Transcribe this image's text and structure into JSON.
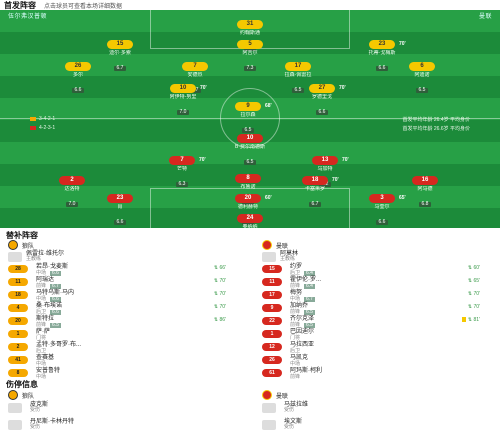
{
  "header": {
    "title": "首发阵容",
    "hint": "点击球员可查看本场详细数据"
  },
  "pitch": {
    "home_team_label": "伍尔弗汉普顿",
    "away_team_label": "曼联",
    "home_rating_hint": "评分",
    "away_rating_hint": "评分",
    "home_formation": "3-4-2-1",
    "away_formation": "4-2-3-1",
    "home_avg": "首发平均年龄 26.4岁  平均身价",
    "away_avg": "首发平均年龄 26.6岁  平均身价"
  },
  "home_players": [
    {
      "num": "31",
      "name": "约翰斯通",
      "rating": "6.2",
      "color": "yellow",
      "evt": ""
    },
    {
      "num": "15",
      "name": "迪尔·多索",
      "rating": "6.7",
      "color": "yellow",
      "evt": ""
    },
    {
      "num": "5",
      "name": "阿吉尔",
      "rating": "7.3",
      "color": "yellow",
      "evt": ""
    },
    {
      "num": "23",
      "name": "托蒂·戈梅斯",
      "rating": "6.6",
      "color": "yellow",
      "evt": "70'"
    },
    {
      "num": "26",
      "name": "多尔",
      "rating": "6.6",
      "color": "yellow",
      "evt": ""
    },
    {
      "num": "7",
      "name": "安德烈",
      "rating": "6.7",
      "color": "yellow",
      "evt": ""
    },
    {
      "num": "17",
      "name": "拉森·佩雷拉",
      "rating": "6.5",
      "color": "yellow",
      "evt": ""
    },
    {
      "num": "6",
      "name": "阿迪诺",
      "rating": "6.5",
      "color": "yellow",
      "evt": ""
    },
    {
      "num": "10",
      "name": "阿伊特-努里",
      "rating": "7.0",
      "color": "yellow",
      "evt": "70'"
    },
    {
      "num": "27",
      "name": "罗德里戈",
      "rating": "6.6",
      "color": "yellow",
      "evt": "70'"
    },
    {
      "num": "9",
      "name": "拉尔森",
      "rating": "6.5",
      "color": "yellow",
      "evt": "68'"
    }
  ],
  "away_players": [
    {
      "num": "10",
      "name": "B·费尔南德斯",
      "rating": "6.5",
      "color": "red",
      "evt": ""
    },
    {
      "num": "7",
      "name": "芒特",
      "rating": "6.3",
      "color": "red",
      "evt": "70'"
    },
    {
      "num": "8",
      "name": "布鲁诺",
      "rating": "6.8",
      "color": "red",
      "evt": ""
    },
    {
      "num": "13",
      "name": "乌加特",
      "rating": "6.2",
      "color": "red",
      "evt": "70'"
    },
    {
      "num": "2",
      "name": "达洛特",
      "rating": "7.0",
      "color": "red",
      "evt": ""
    },
    {
      "num": "18",
      "name": "卡塞米罗",
      "rating": "6.7",
      "color": "red",
      "evt": "70'"
    },
    {
      "num": "16",
      "name": "阿马德",
      "rating": "6.8",
      "color": "red",
      "evt": ""
    },
    {
      "num": "23",
      "name": "肖",
      "rating": "6.6",
      "color": "red",
      "evt": ""
    },
    {
      "num": "20",
      "name": "德利赫特",
      "rating": "6.5",
      "color": "red",
      "evt": "60'"
    },
    {
      "num": "3",
      "name": "马奎尔",
      "rating": "6.6",
      "color": "red",
      "evt": "65'"
    },
    {
      "num": "24",
      "name": "奥纳纳",
      "rating": "6.5",
      "color": "red",
      "evt": ""
    }
  ],
  "subs": {
    "title": "替补阵容",
    "home_team": "狼队",
    "away_team": "曼联",
    "home_coach": {
      "name": "佩雷拉·维托尔",
      "role": "主教练"
    },
    "away_coach": {
      "name": "阿莫林",
      "role": "主教练"
    },
    "home": [
      {
        "num": "28",
        "name": "若昂·戈麦斯",
        "pos": "中场",
        "rating": "6.6",
        "event": "66'",
        "card": false
      },
      {
        "num": "11",
        "name": "阿瑞达",
        "pos": "前锋",
        "rating": "6.7",
        "event": "70'",
        "card": false
      },
      {
        "num": "18",
        "name": "马特乌斯·马内",
        "pos": "中场",
        "rating": "6.6",
        "event": "70'",
        "card": false
      },
      {
        "num": "4",
        "name": "桑·布埃诺",
        "pos": "后卫",
        "rating": "6.6",
        "event": "70'",
        "card": false
      },
      {
        "num": "20",
        "name": "斯特拉",
        "pos": "前锋",
        "rating": "6.5",
        "event": "86'",
        "card": false
      },
      {
        "num": "1",
        "name": "萨·萨",
        "pos": "门将",
        "rating": "",
        "event": "",
        "card": false
      },
      {
        "num": "2",
        "name": "孟特·多哥罗·布...",
        "pos": "后卫",
        "rating": "",
        "event": "",
        "card": false
      },
      {
        "num": "41",
        "name": "查赛基",
        "pos": "中场",
        "rating": "",
        "event": "",
        "card": false
      },
      {
        "num": "8",
        "name": "安普鲁特",
        "pos": "中场",
        "rating": "",
        "event": "",
        "card": false
      }
    ],
    "away": [
      {
        "num": "15",
        "name": "约罗",
        "pos": "后卫",
        "rating": "6.4",
        "event": "60'",
        "card": false
      },
      {
        "num": "11",
        "name": "霍伊伦·罗...",
        "pos": "前锋",
        "rating": "6.4",
        "event": "65'",
        "card": false
      },
      {
        "num": "17",
        "name": "梅努",
        "pos": "中场",
        "rating": "6.7",
        "event": "70'",
        "card": false
      },
      {
        "num": "9",
        "name": "加纳乔",
        "pos": "前锋",
        "rating": "6.5",
        "event": "70'",
        "card": false
      },
      {
        "num": "22",
        "name": "齐尔克泽",
        "pos": "前锋",
        "rating": "6.5",
        "event": "81'",
        "card": true
      },
      {
        "num": "1",
        "name": "巴因迪尔",
        "pos": "门将",
        "rating": "",
        "event": "",
        "card": false
      },
      {
        "num": "12",
        "name": "马拉西亚",
        "pos": "后卫",
        "rating": "",
        "event": "",
        "card": false
      },
      {
        "num": "26",
        "name": "马凯克",
        "pos": "中场",
        "rating": "",
        "event": "",
        "card": false
      },
      {
        "num": "61",
        "name": "阿玛斯·柯利",
        "pos": "前锋",
        "rating": "",
        "event": "",
        "card": false
      }
    ]
  },
  "injuries": {
    "title": "伤停信息",
    "home_team": "狼队",
    "away_team": "曼联",
    "home": [
      {
        "name": "皮克斯",
        "reason": "受伤"
      },
      {
        "name": "丹尼斯·卡林丹特",
        "reason": "受伤"
      }
    ],
    "away": [
      {
        "name": "马兹拉维",
        "reason": "受伤"
      },
      {
        "name": "埃文斯",
        "reason": "受伤"
      }
    ]
  }
}
